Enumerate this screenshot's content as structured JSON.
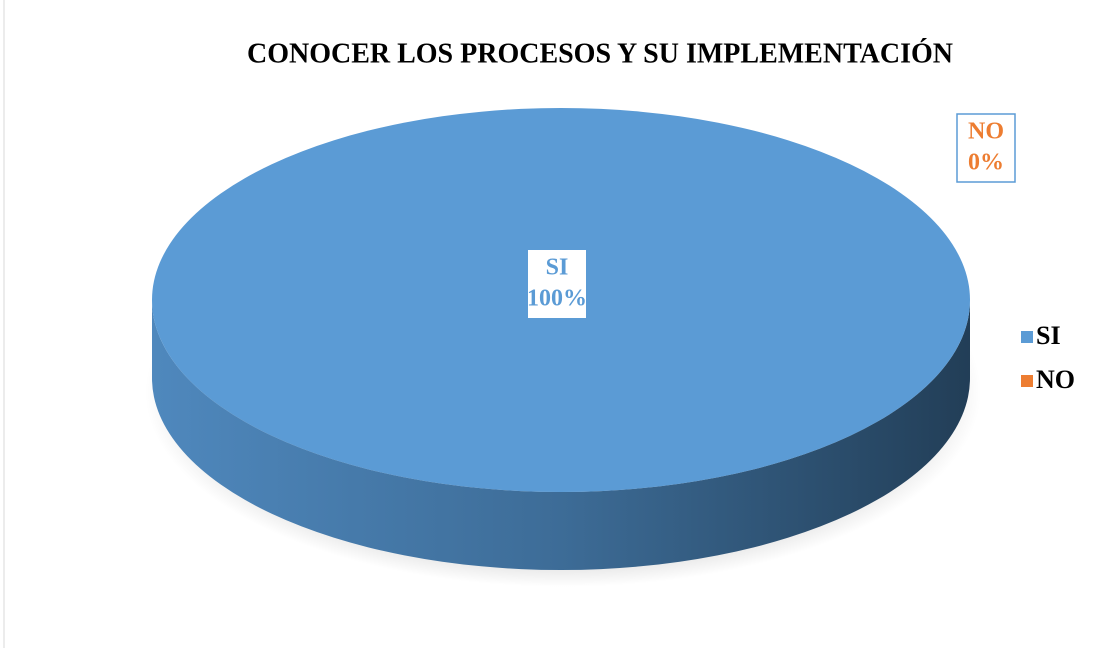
{
  "chart_data": {
    "type": "pie",
    "title": "CONOCER LOS PROCESOS Y SU IMPLEMENTACIÓN",
    "categories": [
      "SI",
      "NO"
    ],
    "values": [
      100,
      0
    ],
    "value_labels": [
      "100%",
      "0%"
    ],
    "colors": [
      "#5b9bd5",
      "#ed7d31"
    ],
    "legend": "right"
  }
}
